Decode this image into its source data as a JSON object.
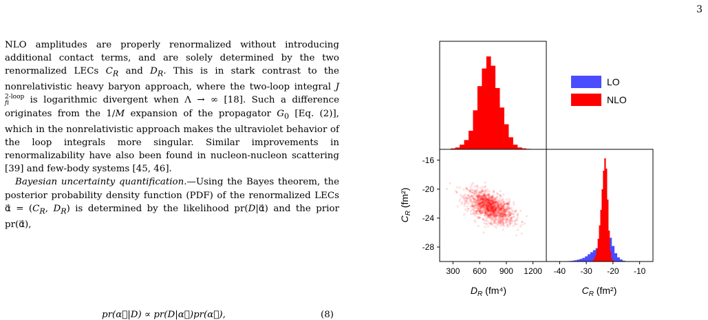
{
  "page": {
    "number": "3"
  },
  "text": {
    "p1_a": "NLO amplitudes are properly renormalized without introducing additional contact terms, and are solely determined by the two renormalized LECs ",
    "p1_CR": "C",
    "p1_sub_R1": "R",
    "p1_and": " and ",
    "p1_DR": "D",
    "p1_sub_R2": "R",
    "p1_b": ". This is in stark contrast to the nonrelativistic heavy baryon approach, where the two-loop integral ",
    "p1_J": "J",
    "p1_J_sup": "2-loop",
    "p1_J_sub": "fi",
    "p1_c": " is logarithmic divergent when Λ → ∞ [18]. Such a difference originates from the 1/",
    "p1_M": "M",
    "p1_d": " expansion of the propagator ",
    "p1_G": "G",
    "p1_G_sub": "0",
    "p1_e": " [Eq. (2)], which in the nonrelativistic approach makes the ultraviolet behavior of the loop integrals more singular. Similar improvements in renormalizability have also been found in nucleon-nucleon scattering [39] and few-body systems [45, 46].",
    "p2_title": "Bayesian uncertainty quantification.",
    "p2_a": "—Using the Bayes theorem, the posterior probability density function (PDF) of the renormalized LECs α⃗ = (",
    "p2_CR": "C",
    "p2_sub1": "R",
    "p2_comma": ", ",
    "p2_DR": "D",
    "p2_sub2": "R",
    "p2_b": ") is determined by the likelihood pr(",
    "p2_D1": "D",
    "p2_c": "|α⃗) and the prior pr(α⃗),",
    "equation": "pr(α⃗|D) ∝ pr(D|α⃗)pr(α⃗),",
    "eq_number": "(8)"
  },
  "chart_data": [
    {
      "type": "histogram",
      "panel": "top-left",
      "title": "",
      "xlabel": "",
      "ylabel": "",
      "xlim": [
        150,
        1350
      ],
      "series": [
        {
          "name": "NLO",
          "color": "#ff0000",
          "bin_centers": [
            300,
            350,
            400,
            450,
            500,
            550,
            600,
            650,
            700,
            750,
            800,
            850,
            900,
            950,
            1000,
            1050,
            1100,
            1150
          ],
          "values": [
            0.01,
            0.02,
            0.05,
            0.1,
            0.2,
            0.42,
            0.68,
            0.87,
            1.0,
            0.9,
            0.66,
            0.45,
            0.27,
            0.13,
            0.05,
            0.02,
            0.01,
            0.005
          ]
        }
      ]
    },
    {
      "type": "scatter",
      "panel": "bottom-left",
      "title": "",
      "xlabel": "D_R (fm⁴)",
      "ylabel": "C_R (fm²)",
      "xlim": [
        150,
        1350
      ],
      "ylim": [
        -30,
        -14.5
      ],
      "xticks": [
        300,
        600,
        900,
        1200
      ],
      "yticks": [
        -16,
        -20,
        -24,
        -28
      ],
      "distribution": {
        "name": "NLO",
        "color": "#ff0000",
        "center": [
          720,
          -22.5
        ],
        "sd": [
          130,
          1.15
        ],
        "correlation": -0.55
      }
    },
    {
      "type": "histogram",
      "panel": "bottom-right",
      "title": "",
      "xlabel": "C_R (fm²)",
      "ylabel": "",
      "xlim": [
        -45,
        -5
      ],
      "xticks": [
        -40,
        -30,
        -20,
        -10
      ],
      "series": [
        {
          "name": "LO",
          "color": "#4b4bff",
          "bin_centers": [
            -37,
            -36,
            -35,
            -34,
            -33,
            -32,
            -31,
            -30,
            -29,
            -28,
            -27,
            -26,
            -25,
            -24,
            -23,
            -22,
            -21,
            -20,
            -19,
            -18,
            -17,
            -16,
            -15
          ],
          "values": [
            0.003,
            0.005,
            0.008,
            0.012,
            0.018,
            0.025,
            0.035,
            0.05,
            0.07,
            0.09,
            0.11,
            0.13,
            0.16,
            0.2,
            0.25,
            0.28,
            0.23,
            0.15,
            0.08,
            0.04,
            0.02,
            0.008,
            0.003
          ]
        },
        {
          "name": "NLO",
          "color": "#ff0000",
          "bin_centers": [
            -27.5,
            -27,
            -26.5,
            -26,
            -25.5,
            -25,
            -24.5,
            -24,
            -23.5,
            -23,
            -22.5,
            -22,
            -21.5,
            -21,
            -20.5,
            -20
          ],
          "values": [
            0.01,
            0.03,
            0.06,
            0.12,
            0.22,
            0.35,
            0.5,
            0.7,
            0.88,
            1.0,
            0.9,
            0.6,
            0.3,
            0.1,
            0.03,
            0.01
          ]
        }
      ]
    }
  ],
  "legend": {
    "items": [
      {
        "label": "LO",
        "color": "#4b4bff"
      },
      {
        "label": "NLO",
        "color": "#ff0000"
      }
    ]
  }
}
